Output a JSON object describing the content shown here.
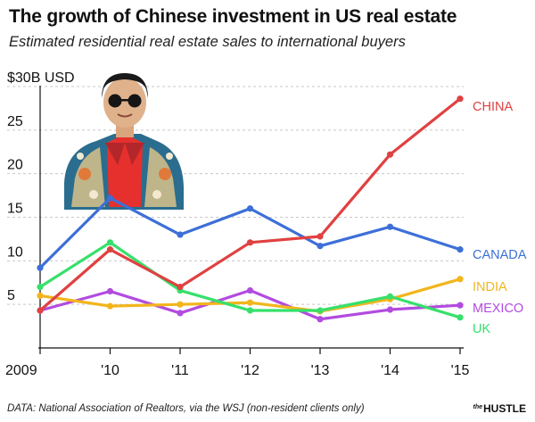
{
  "chart_data": {
    "type": "line",
    "title": "The growth of Chinese investment in US real estate",
    "subtitle": "Estimated residential real estate sales to international buyers",
    "x": [
      "2009",
      "'10",
      "'11",
      "'12",
      "'13",
      "'14",
      "'15"
    ],
    "ytick_labels": [
      "$30B USD",
      "25",
      "20",
      "15",
      "10",
      "5"
    ],
    "ytick_values": [
      30,
      25,
      20,
      15,
      10,
      5
    ],
    "ylim": [
      0,
      30
    ],
    "grid": "dashed horizontal",
    "series": [
      {
        "name": "CHINA",
        "color": "#e04141",
        "values": [
          4.3,
          11.3,
          7.0,
          12.1,
          12.8,
          22.2,
          28.6
        ]
      },
      {
        "name": "CANADA",
        "color": "#3d6fd8",
        "values": [
          9.2,
          17.2,
          13.0,
          16.0,
          11.7,
          13.9,
          11.3
        ]
      },
      {
        "name": "INDIA",
        "color": "#f2b51c",
        "values": [
          6.0,
          4.8,
          5.0,
          5.2,
          4.2,
          5.6,
          7.9
        ]
      },
      {
        "name": "MEXICO",
        "color": "#b24be0",
        "values": [
          4.3,
          6.5,
          4.0,
          6.6,
          3.3,
          4.4,
          4.9
        ]
      },
      {
        "name": "UK",
        "color": "#36e06b",
        "values": [
          7.0,
          12.1,
          6.6,
          4.3,
          4.3,
          5.9,
          3.5
        ]
      }
    ]
  },
  "footer": {
    "source": "DATA: National Association of Realtors, via the WSJ (non-resident clients only)",
    "brand_prefix": "the",
    "brand": "HUSTLE"
  },
  "illustration": {
    "icon": "person-portrait-icon"
  }
}
